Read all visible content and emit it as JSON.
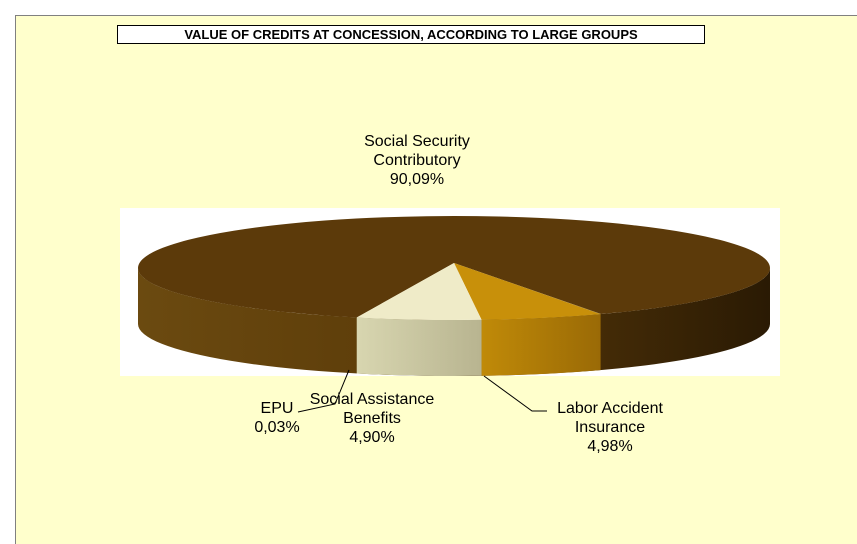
{
  "chart_data": {
    "type": "pie",
    "title": "VALUE OF CREDITS AT CONCESSION, ACCORDING TO LARGE GROUPS",
    "slices": [
      {
        "label": [
          "Social Security",
          "Contributory"
        ],
        "value_text": "90,09%",
        "value": 90.09,
        "color": "#5C3A0A"
      },
      {
        "label": [
          "Labor Accident",
          "Insurance"
        ],
        "value_text": "4,98%",
        "value": 4.98,
        "color": "#EFEBC8"
      },
      {
        "label": [
          "Social Assistance",
          "Benefits"
        ],
        "value_text": "4,90%",
        "value": 4.9,
        "color": "#C8900A"
      },
      {
        "label": [
          "EPU"
        ],
        "value_text": "0,03%",
        "value": 0.03,
        "color": "#7A5A1A"
      }
    ]
  }
}
